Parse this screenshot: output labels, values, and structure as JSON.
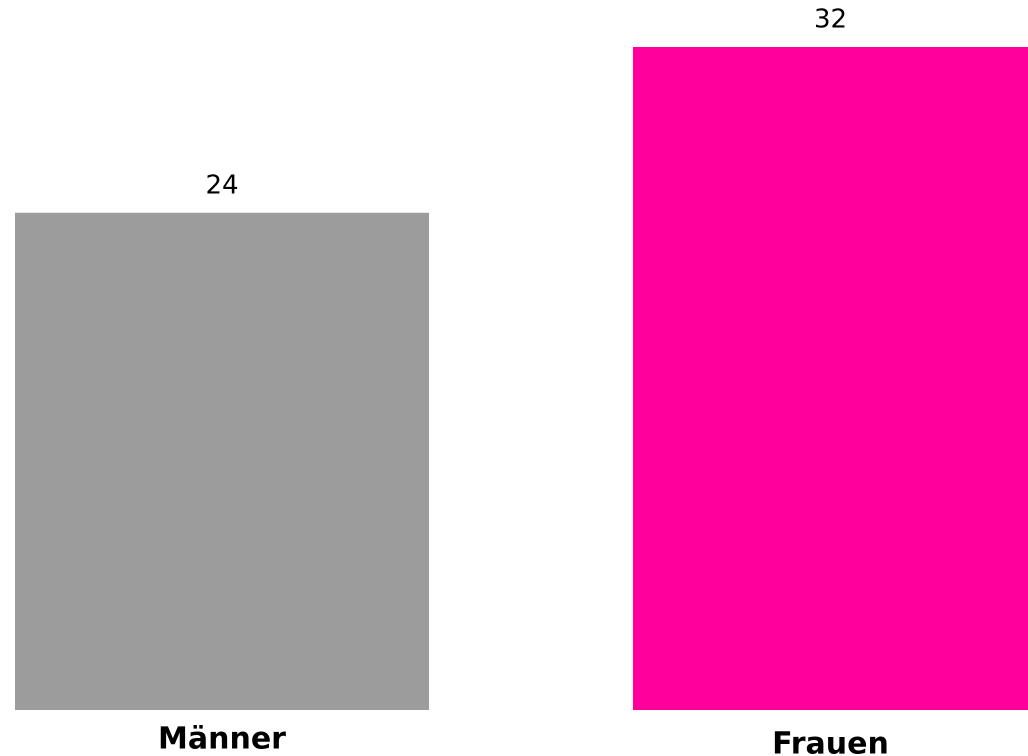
{
  "chart_data": {
    "type": "bar",
    "categories": [
      "Männer",
      "Frauen"
    ],
    "values": [
      24,
      32
    ],
    "colors": [
      "#9c9c9c",
      "#ff009c"
    ]
  }
}
